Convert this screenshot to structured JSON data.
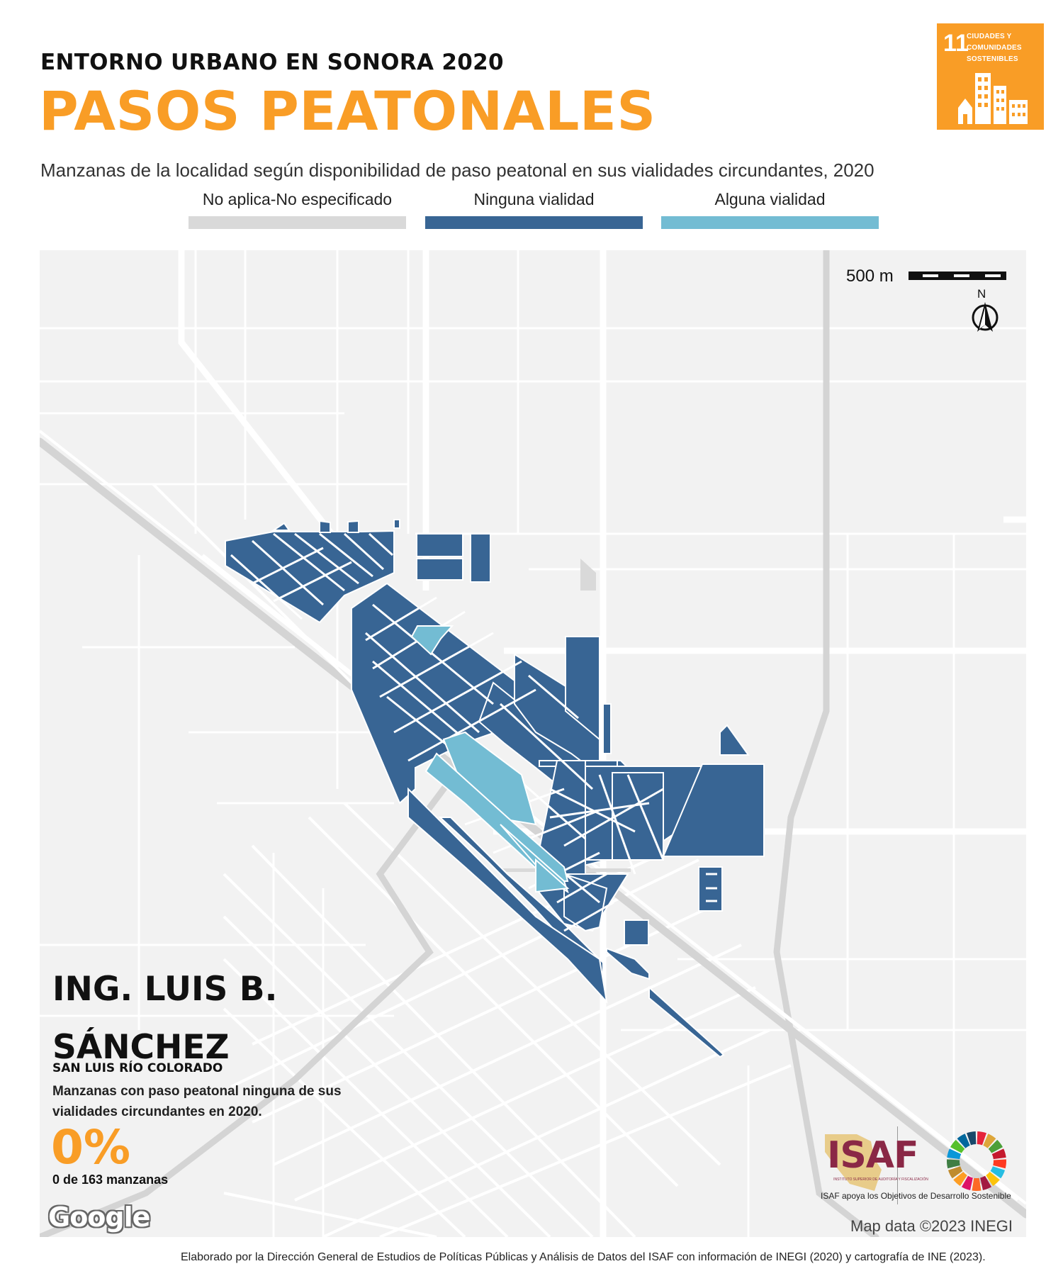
{
  "header": {
    "kicker": "ENTORNO URBANO EN SONORA 2020",
    "title": "PASOS PEATONALES",
    "subtitle": "Manzanas de la localidad según disponibilidad de paso peatonal en sus vialidades circundantes, 2020"
  },
  "legend": [
    {
      "label": "No aplica-No especificado",
      "color": "#d9d9d9"
    },
    {
      "label": "Ninguna vialidad",
      "color": "#386594"
    },
    {
      "label": "Alguna vialidad",
      "color": "#73bcd3"
    }
  ],
  "sdg_badge": {
    "number": "11",
    "text_line1": "CIUDADES Y",
    "text_line2": "COMUNIDADES",
    "text_line3": "SOSTENIBLES",
    "color": "#f99d26"
  },
  "map": {
    "scale_label": "500 m",
    "north_label": "N",
    "attribution": "Map data ©2023 INEGI",
    "provider_logo": "Google",
    "colors": {
      "background": "#f2f2f2",
      "road": "#ffffff",
      "highway": "#d4d4d4",
      "none": "#386594",
      "some": "#73bcd3",
      "na": "#d9d9d9"
    }
  },
  "locality": {
    "name_line1": "ING. LUIS B.",
    "name_line2": "SÁNCHEZ",
    "municipality": "SAN LUIS RÍO COLORADO",
    "description": "Manzanas con paso peatonal ninguna de sus vialidades circundantes en 2020.",
    "percentage": "0%",
    "count": "0 de 163 manzanas"
  },
  "branding": {
    "isaf": "ISAF",
    "isaf_subtitle": "INSTITUTO SUPERIOR DE AUDITORÍA Y FISCALIZACIÓN",
    "support_text": "ISAF apoya los Objetivos de Desarrollo Sostenible"
  },
  "footer": "Elaborado por la Dirección General de Estudios de Políticas Públicas y Análisis de Datos del ISAF con información de INEGI (2020) y cartografía de INE (2023)."
}
